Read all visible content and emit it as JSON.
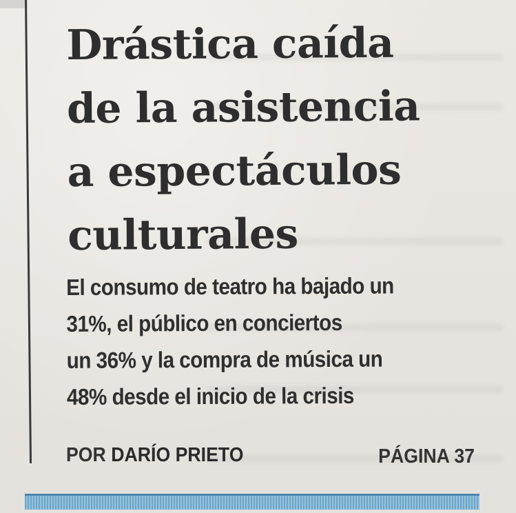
{
  "headline": {
    "lines": [
      "Drástica caída",
      "de la asistencia",
      "a espectáculos",
      "culturales"
    ]
  },
  "subheadline": {
    "lines": [
      "El consumo de teatro ha bajado un",
      "31%, el público en conciertos",
      "un 36% y la compra de música un",
      "48% desde el inicio de la crisis"
    ]
  },
  "byline": {
    "prefix": "POR",
    "author": "DARÍO PRIETO"
  },
  "page_reference": "PÁGINA 37",
  "colors": {
    "paper": "#e9e6e1",
    "ink": "#2e2e2e",
    "band": "#5f9fc8"
  }
}
